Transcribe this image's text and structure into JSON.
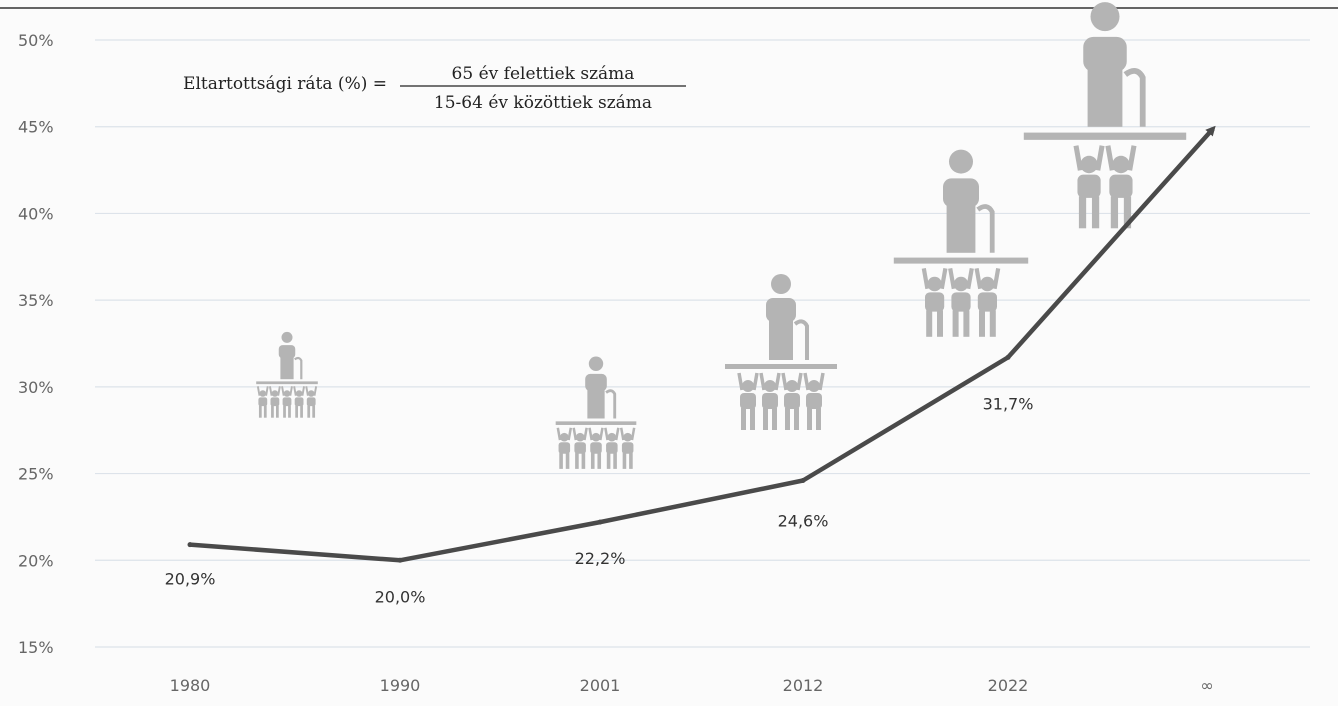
{
  "formula": {
    "lhs": "Eltartottsági ráta (%) =",
    "numerator": "65 év felettiek száma",
    "denominator": "15-64 év közöttiek száma"
  },
  "colors": {
    "line": "#4a4a4a",
    "grid": "#dde3ea",
    "icon": "#b4b4b4",
    "tick": "#666666"
  },
  "chart_data": {
    "type": "line",
    "categories": [
      "1980",
      "1990",
      "2001",
      "2012",
      "2022",
      "∞"
    ],
    "series": [
      {
        "values": [
          20.9,
          20.0,
          22.2,
          24.6,
          31.7,
          null
        ],
        "labels": [
          "20,9%",
          "20,0%",
          "22,2%",
          "24,6%",
          "31,7%",
          ""
        ]
      }
    ],
    "trend_arrow_end": 45,
    "ylim": [
      15,
      50
    ],
    "yticks": [
      "15%",
      "20%",
      "25%",
      "30%",
      "35%",
      "40%",
      "45%",
      "50%"
    ],
    "grid": true,
    "icons": [
      {
        "category": "1980",
        "workers": 5
      },
      {
        "category": "2001",
        "workers": 5
      },
      {
        "category": "2012",
        "workers": 4
      },
      {
        "category": "2022",
        "workers": 3
      },
      {
        "category": "∞",
        "workers": 2
      }
    ]
  }
}
